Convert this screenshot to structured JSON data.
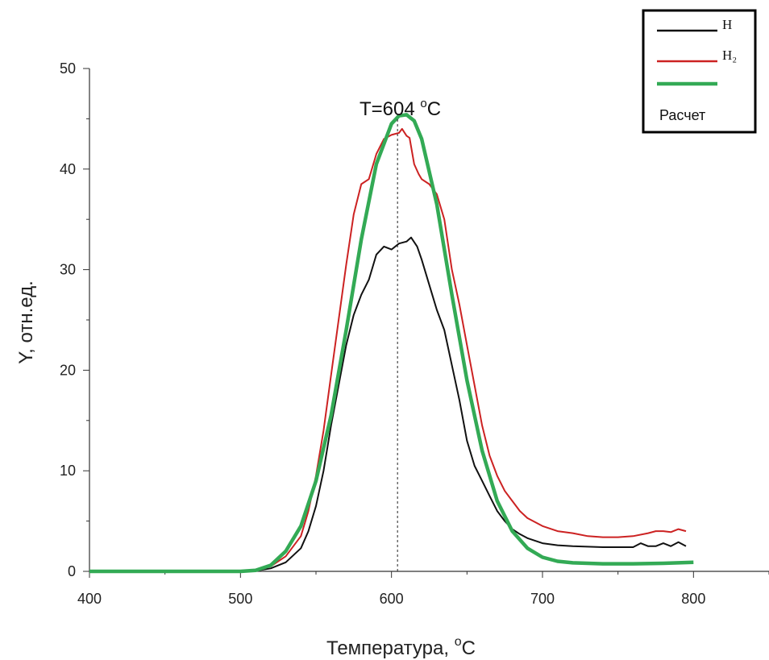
{
  "chart_data": {
    "type": "line",
    "xlabel": "Температура, ",
    "xlabel_unit_sup": "o",
    "xlabel_unit": "C",
    "ylabel": "Y, отн.ед.",
    "xlim": [
      400,
      850
    ],
    "ylim": [
      0,
      50
    ],
    "xticks": [
      400,
      500,
      600,
      700,
      800
    ],
    "yticks": [
      0,
      10,
      20,
      30,
      40,
      50
    ],
    "grid": false,
    "legend_position": "top-right",
    "annotation": {
      "text": "T=604 ",
      "sup": "o",
      "unit": "C",
      "x": 604
    },
    "series": [
      {
        "name": "H",
        "color": "#111111",
        "x": [
          400,
          500,
          510,
          520,
          530,
          540,
          545,
          550,
          555,
          560,
          565,
          570,
          575,
          580,
          585,
          590,
          595,
          600,
          605,
          610,
          613,
          617,
          620,
          625,
          630,
          635,
          640,
          645,
          650,
          655,
          660,
          665,
          670,
          675,
          680,
          685,
          690,
          700,
          710,
          720,
          740,
          760,
          765,
          770,
          775,
          780,
          785,
          790,
          795
        ],
        "y": [
          0,
          0,
          0.05,
          0.3,
          0.9,
          2.3,
          4,
          6.5,
          10,
          14.5,
          18.5,
          22.5,
          25.5,
          27.5,
          29,
          31.5,
          32.3,
          32,
          32.6,
          32.8,
          33.2,
          32.3,
          31,
          28.5,
          26,
          24,
          20.5,
          17,
          13,
          10.5,
          9,
          7.5,
          6,
          5,
          4.2,
          3.7,
          3.3,
          2.8,
          2.6,
          2.5,
          2.4,
          2.4,
          2.8,
          2.5,
          2.5,
          2.8,
          2.5,
          2.9,
          2.5
        ]
      },
      {
        "name": "H₂",
        "color": "#cc2222",
        "x": [
          400,
          500,
          510,
          520,
          530,
          540,
          545,
          550,
          555,
          560,
          565,
          570,
          575,
          580,
          585,
          590,
          595,
          600,
          605,
          607,
          610,
          612,
          615,
          618,
          620,
          625,
          630,
          635,
          640,
          645,
          650,
          655,
          660,
          665,
          670,
          675,
          680,
          685,
          690,
          700,
          710,
          720,
          730,
          740,
          750,
          760,
          770,
          775,
          780,
          785,
          790,
          795
        ],
        "y": [
          0,
          0,
          0.1,
          0.5,
          1.5,
          3.5,
          6,
          9.5,
          14,
          19.5,
          25,
          30.5,
          35.5,
          38.5,
          39,
          41.5,
          43,
          43.4,
          43.6,
          44,
          43.3,
          43.1,
          40.5,
          39.5,
          39,
          38.5,
          37.5,
          35,
          30,
          26.5,
          22.5,
          18.5,
          14.5,
          11.5,
          9.5,
          8,
          7,
          6,
          5.3,
          4.5,
          4,
          3.8,
          3.5,
          3.4,
          3.4,
          3.5,
          3.8,
          4,
          4,
          3.9,
          4.2,
          4
        ]
      },
      {
        "name": "Расчет",
        "color": "#33aa55",
        "x": [
          400,
          500,
          510,
          520,
          530,
          540,
          550,
          560,
          570,
          580,
          590,
          600,
          605,
          610,
          615,
          620,
          630,
          640,
          650,
          660,
          670,
          680,
          690,
          700,
          710,
          720,
          740,
          760,
          780,
          800
        ],
        "y": [
          0,
          0,
          0.1,
          0.6,
          2.0,
          4.5,
          9.0,
          15.5,
          24,
          33,
          40.5,
          44.5,
          45.3,
          45.4,
          44.8,
          43,
          36.5,
          27.5,
          19,
          12,
          7,
          4,
          2.3,
          1.4,
          1.0,
          0.85,
          0.75,
          0.75,
          0.8,
          0.9
        ]
      }
    ]
  }
}
